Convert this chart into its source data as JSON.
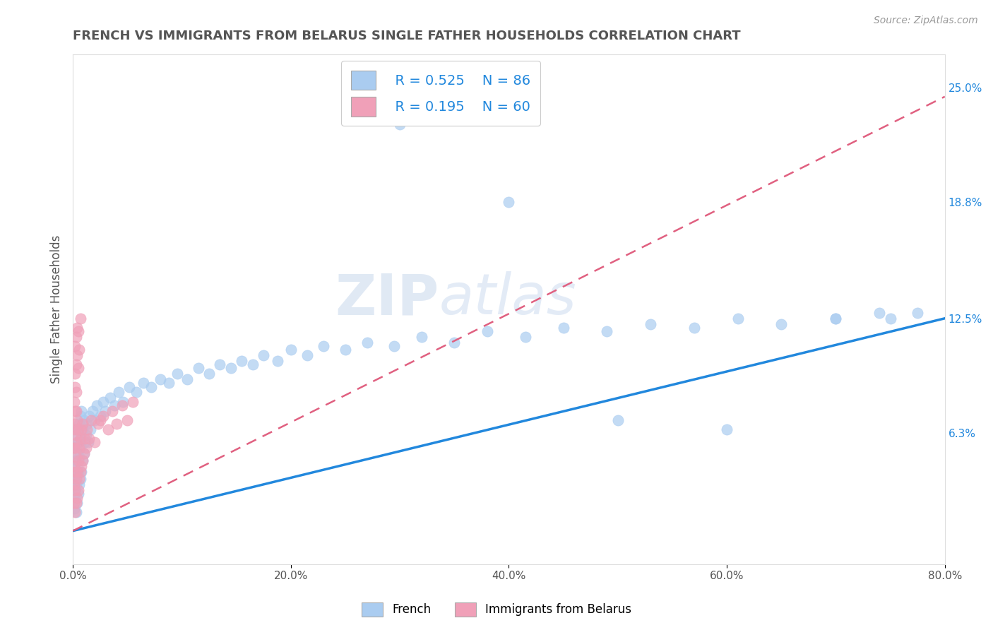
{
  "title": "FRENCH VS IMMIGRANTS FROM BELARUS SINGLE FATHER HOUSEHOLDS CORRELATION CHART",
  "source": "Source: ZipAtlas.com",
  "ylabel": "Single Father Households",
  "right_yticks": [
    "25.0%",
    "18.8%",
    "12.5%",
    "6.3%"
  ],
  "right_ytick_vals": [
    0.25,
    0.188,
    0.125,
    0.063
  ],
  "x_min": 0.0,
  "x_max": 0.8,
  "y_min": -0.008,
  "y_max": 0.268,
  "legend_labels": [
    "French",
    "Immigrants from Belarus"
  ],
  "legend_r": [
    "R = 0.525",
    "R = 0.195"
  ],
  "legend_n": [
    "N = 86",
    "N = 60"
  ],
  "french_color": "#aaccf0",
  "belarus_color": "#f0a0b8",
  "french_line_color": "#2288dd",
  "belarus_line_color": "#e06080",
  "watermark_zip": "ZIP",
  "watermark_atlas": "atlas",
  "french_scatter_x": [
    0.001,
    0.001,
    0.002,
    0.002,
    0.002,
    0.003,
    0.003,
    0.003,
    0.003,
    0.004,
    0.004,
    0.004,
    0.004,
    0.005,
    0.005,
    0.005,
    0.006,
    0.006,
    0.006,
    0.007,
    0.007,
    0.007,
    0.008,
    0.008,
    0.008,
    0.009,
    0.009,
    0.01,
    0.01,
    0.011,
    0.012,
    0.013,
    0.014,
    0.015,
    0.016,
    0.018,
    0.02,
    0.022,
    0.025,
    0.028,
    0.03,
    0.034,
    0.038,
    0.042,
    0.046,
    0.052,
    0.058,
    0.065,
    0.072,
    0.08,
    0.088,
    0.096,
    0.105,
    0.115,
    0.125,
    0.135,
    0.145,
    0.155,
    0.165,
    0.175,
    0.188,
    0.2,
    0.215,
    0.23,
    0.25,
    0.27,
    0.295,
    0.32,
    0.35,
    0.38,
    0.415,
    0.45,
    0.49,
    0.53,
    0.57,
    0.61,
    0.65,
    0.7,
    0.74,
    0.775,
    0.3,
    0.4,
    0.5,
    0.6,
    0.7,
    0.75
  ],
  "french_scatter_y": [
    0.038,
    0.022,
    0.03,
    0.045,
    0.055,
    0.02,
    0.035,
    0.048,
    0.06,
    0.025,
    0.04,
    0.052,
    0.065,
    0.03,
    0.042,
    0.058,
    0.035,
    0.05,
    0.068,
    0.038,
    0.055,
    0.072,
    0.042,
    0.06,
    0.075,
    0.048,
    0.065,
    0.052,
    0.07,
    0.058,
    0.062,
    0.068,
    0.058,
    0.072,
    0.065,
    0.075,
    0.07,
    0.078,
    0.072,
    0.08,
    0.075,
    0.082,
    0.078,
    0.085,
    0.08,
    0.088,
    0.085,
    0.09,
    0.088,
    0.092,
    0.09,
    0.095,
    0.092,
    0.098,
    0.095,
    0.1,
    0.098,
    0.102,
    0.1,
    0.105,
    0.102,
    0.108,
    0.105,
    0.11,
    0.108,
    0.112,
    0.11,
    0.115,
    0.112,
    0.118,
    0.115,
    0.12,
    0.118,
    0.122,
    0.12,
    0.125,
    0.122,
    0.125,
    0.128,
    0.128,
    0.23,
    0.188,
    0.07,
    0.065,
    0.125,
    0.125
  ],
  "belarus_scatter_x": [
    0.001,
    0.001,
    0.001,
    0.001,
    0.001,
    0.001,
    0.002,
    0.002,
    0.002,
    0.002,
    0.002,
    0.002,
    0.002,
    0.003,
    0.003,
    0.003,
    0.003,
    0.003,
    0.003,
    0.004,
    0.004,
    0.004,
    0.004,
    0.005,
    0.005,
    0.005,
    0.006,
    0.006,
    0.007,
    0.007,
    0.008,
    0.008,
    0.009,
    0.009,
    0.01,
    0.011,
    0.012,
    0.013,
    0.015,
    0.017,
    0.02,
    0.023,
    0.025,
    0.028,
    0.032,
    0.036,
    0.04,
    0.045,
    0.05,
    0.055,
    0.002,
    0.002,
    0.003,
    0.003,
    0.004,
    0.004,
    0.005,
    0.005,
    0.006,
    0.007
  ],
  "belarus_scatter_y": [
    0.025,
    0.035,
    0.045,
    0.055,
    0.068,
    0.08,
    0.02,
    0.032,
    0.042,
    0.055,
    0.065,
    0.075,
    0.088,
    0.025,
    0.038,
    0.05,
    0.062,
    0.075,
    0.085,
    0.028,
    0.042,
    0.058,
    0.07,
    0.032,
    0.048,
    0.065,
    0.038,
    0.055,
    0.042,
    0.06,
    0.045,
    0.065,
    0.048,
    0.068,
    0.052,
    0.06,
    0.055,
    0.065,
    0.06,
    0.07,
    0.058,
    0.068,
    0.07,
    0.072,
    0.065,
    0.075,
    0.068,
    0.078,
    0.07,
    0.08,
    0.095,
    0.11,
    0.1,
    0.115,
    0.105,
    0.12,
    0.098,
    0.118,
    0.108,
    0.125
  ],
  "french_trend_x": [
    0.0,
    0.8
  ],
  "french_trend_y": [
    0.01,
    0.125
  ],
  "belarus_trend_x": [
    0.0,
    0.8
  ],
  "belarus_trend_y": [
    0.01,
    0.245
  ],
  "background_color": "#ffffff",
  "grid_color": "#cccccc",
  "title_color": "#555555",
  "axis_label_color": "#555555"
}
